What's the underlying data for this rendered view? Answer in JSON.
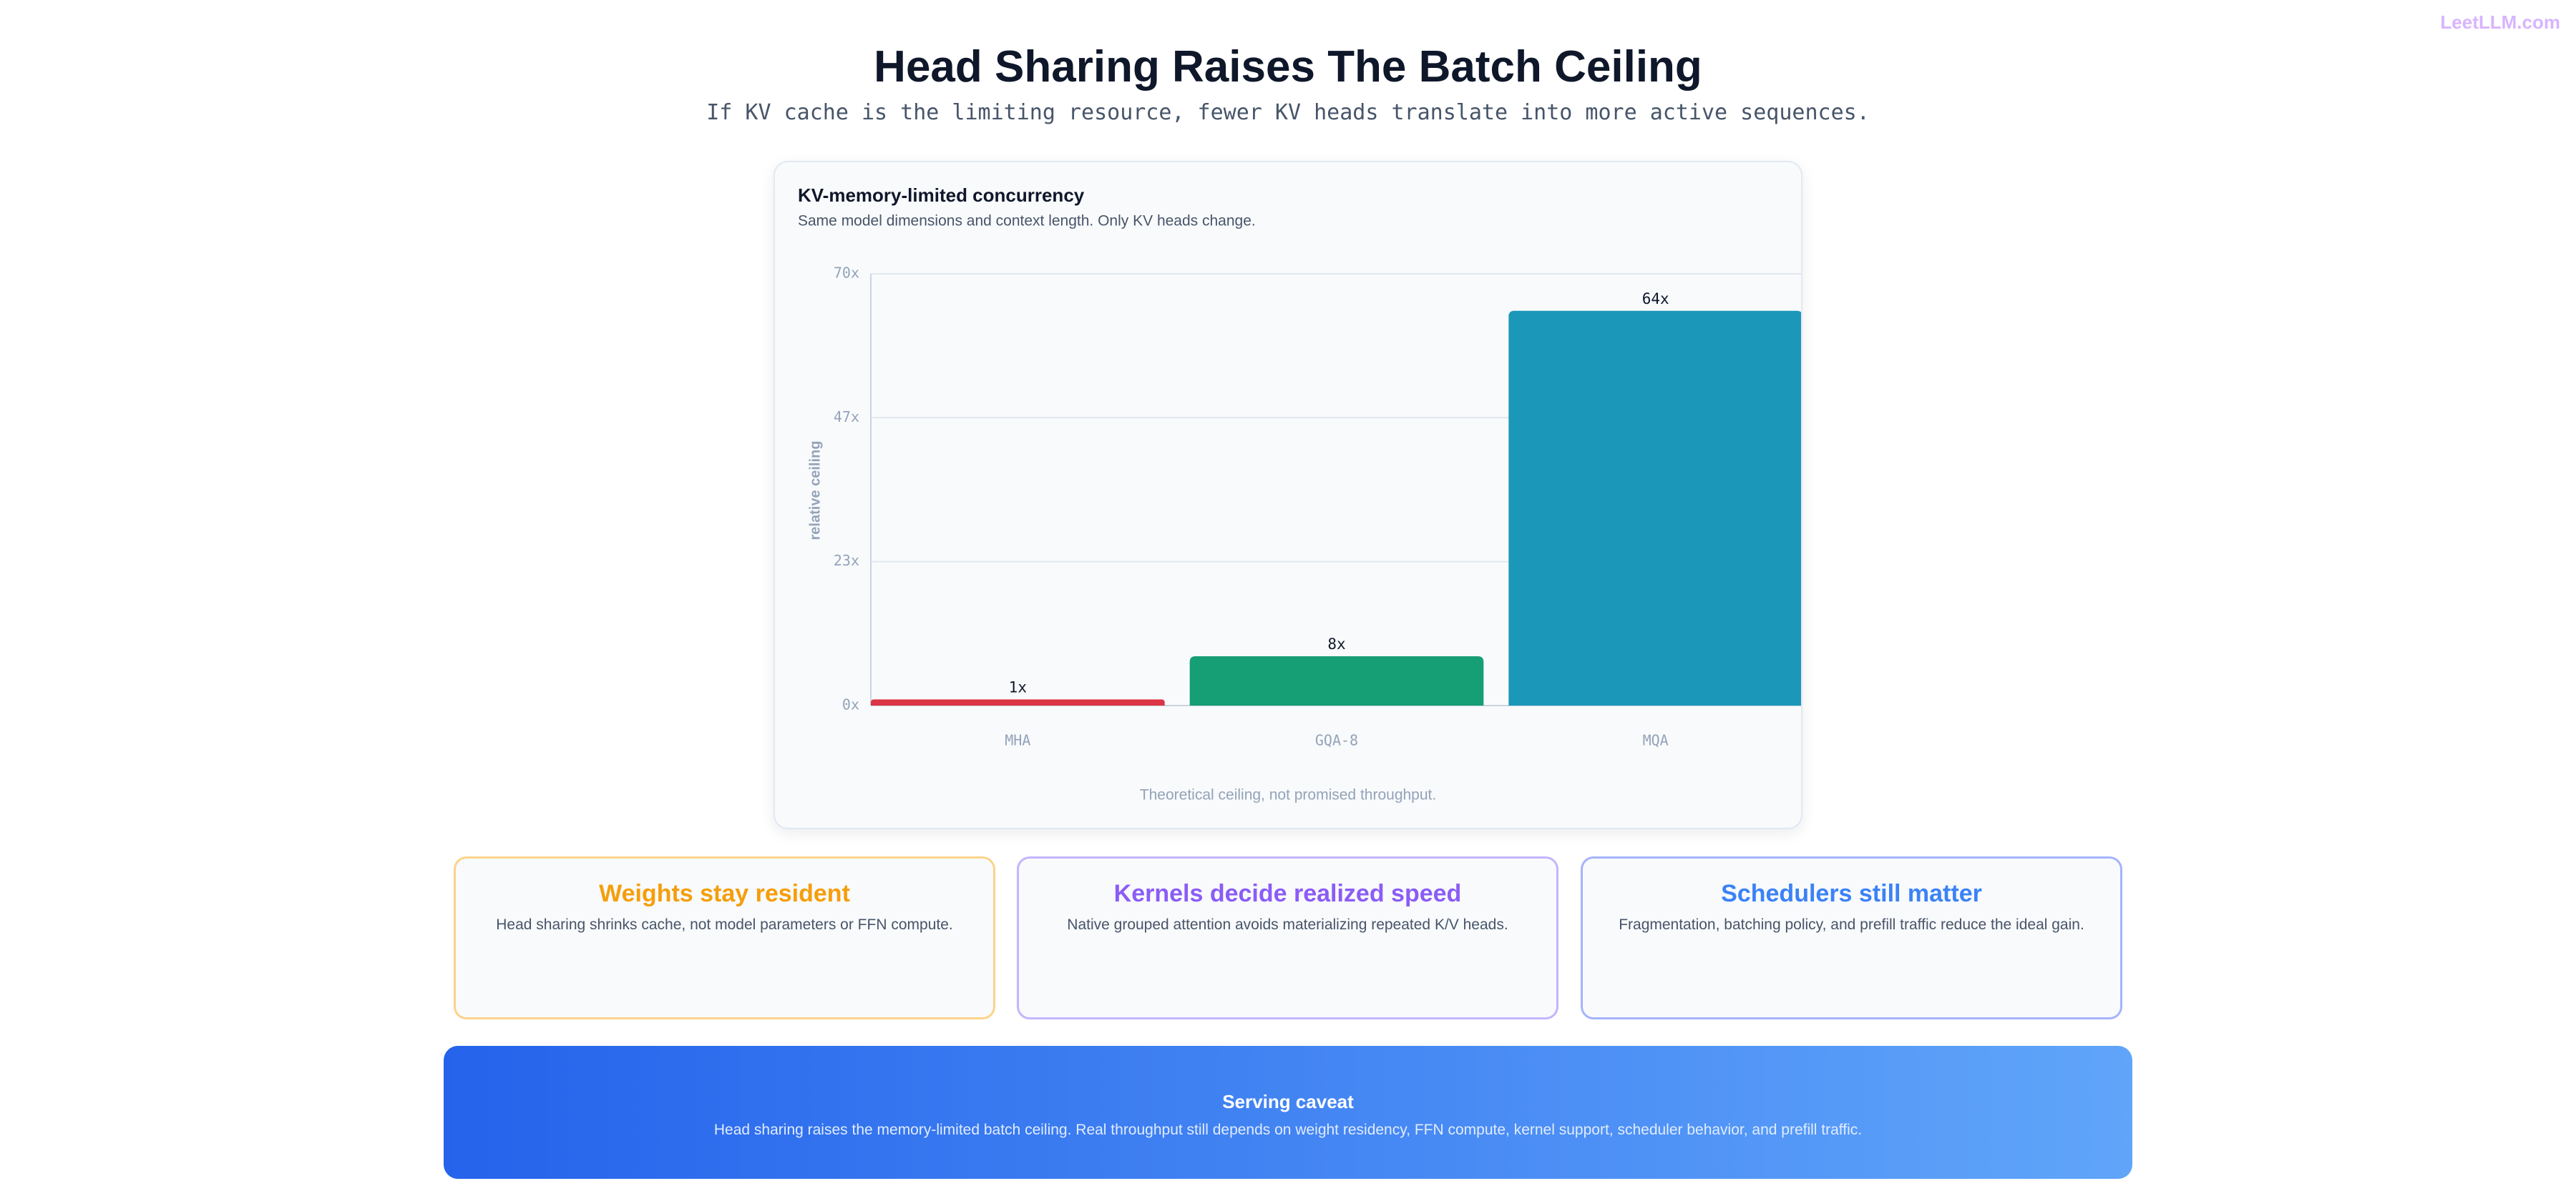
{
  "header": {
    "title": "Head Sharing Raises The Batch Ceiling",
    "subtitle": "If KV cache is the limiting resource, fewer KV heads translate into more active sequences.",
    "watermark": "LeetLLM.com"
  },
  "chart_data": {
    "type": "bar",
    "title": "KV-memory-limited concurrency",
    "subtitle": "Same model dimensions and context length. Only KV heads change.",
    "y_label": "relative ceiling",
    "footnote": "Theoretical ceiling, not promised throughput.",
    "categories": [
      "MHA",
      "GQA-8",
      "MQA"
    ],
    "values": [
      1,
      8,
      64
    ],
    "value_labels": [
      "1x",
      "8x",
      "64x"
    ],
    "colors": [
      "#dc3545",
      "#169e74",
      "#1b98b9"
    ],
    "ylim": [
      0,
      70
    ],
    "yticks": [
      {
        "value": 0,
        "label": "0x"
      },
      {
        "value": 23.33,
        "label": "23x"
      },
      {
        "value": 46.67,
        "label": "47x"
      },
      {
        "value": 70,
        "label": "70x"
      }
    ],
    "grid": true
  },
  "cards": [
    {
      "title": "Weights stay resident",
      "text": "Head sharing shrinks cache, not model parameters or FFN compute."
    },
    {
      "title": "Kernels decide realized speed",
      "text": "Native grouped attention avoids materializing repeated K/V heads."
    },
    {
      "title": "Schedulers still matter",
      "text": "Fragmentation, batching policy, and prefill traffic reduce the ideal gain."
    }
  ],
  "caveat": {
    "title": "Serving caveat",
    "text": "Head sharing raises the memory-limited batch ceiling. Real throughput still depends on weight residency, FFN compute, kernel support, scheduler behavior, and prefill traffic."
  }
}
